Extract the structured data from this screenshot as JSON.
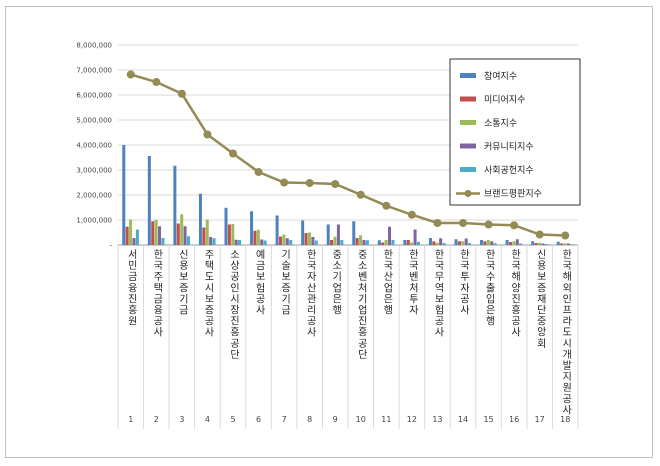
{
  "chart_data": {
    "type": "bar",
    "ylim": [
      0,
      8000000
    ],
    "yticks": [
      "-",
      "1,000,000",
      "2,000,000",
      "3,000,000",
      "4,000,000",
      "5,000,000",
      "6,000,000",
      "7,000,000",
      "8,000,000"
    ],
    "grid": true,
    "legend_position": "top-right",
    "index_labels": [
      "1",
      "2",
      "3",
      "4",
      "5",
      "6",
      "7",
      "8",
      "9",
      "10",
      "11",
      "12",
      "13",
      "14",
      "15",
      "16",
      "17",
      "18"
    ],
    "categories": [
      "서민금융진흥원",
      "한국주택금융공사",
      "신용보증기금",
      "주택도시보증공사",
      "소상공인시장진흥공단",
      "예금보험공사",
      "기술보증기금",
      "한국자산관리공사",
      "중소기업은행",
      "중소벤처기업진흥공단",
      "한국산업은행",
      "한국벤처투자",
      "한국무역보험공사",
      "한국투자공사",
      "한국수출입은행",
      "한국해양진흥공사",
      "신용보증재단중앙회",
      "한국해외인프라도시개발지원공사"
    ],
    "series": [
      {
        "name": "참여지수",
        "kind": "bar",
        "color": "#4f81bd",
        "values": [
          4000000,
          3560000,
          3170000,
          2050000,
          1490000,
          1350000,
          1180000,
          980000,
          820000,
          950000,
          190000,
          200000,
          280000,
          230000,
          200000,
          200000,
          150000,
          130000
        ]
      },
      {
        "name": "미디어지수",
        "kind": "bar",
        "color": "#c0504d",
        "values": [
          730000,
          950000,
          860000,
          700000,
          820000,
          570000,
          340000,
          480000,
          200000,
          280000,
          100000,
          200000,
          150000,
          150000,
          150000,
          120000,
          80000,
          60000
        ]
      },
      {
        "name": "소통지수",
        "kind": "bar",
        "color": "#9bbb59",
        "values": [
          1020000,
          1010000,
          1230000,
          1020000,
          840000,
          610000,
          420000,
          500000,
          330000,
          390000,
          200000,
          100000,
          90000,
          150000,
          200000,
          150000,
          90000,
          70000
        ]
      },
      {
        "name": "커뮤니티지수",
        "kind": "bar",
        "color": "#8064a2",
        "values": [
          280000,
          750000,
          750000,
          320000,
          210000,
          220000,
          270000,
          320000,
          820000,
          200000,
          730000,
          620000,
          270000,
          260000,
          150000,
          230000,
          60000,
          60000
        ]
      },
      {
        "name": "사회공헌지수",
        "kind": "bar",
        "color": "#4bacc6",
        "values": [
          620000,
          280000,
          350000,
          270000,
          200000,
          180000,
          200000,
          180000,
          200000,
          190000,
          200000,
          130000,
          80000,
          80000,
          70000,
          60000,
          40000,
          30000
        ]
      },
      {
        "name": "브랜드평판지수",
        "kind": "line",
        "color": "#948a54",
        "values": [
          6820000,
          6520000,
          6050000,
          4420000,
          3660000,
          2920000,
          2500000,
          2480000,
          2440000,
          2010000,
          1570000,
          1210000,
          880000,
          880000,
          820000,
          790000,
          420000,
          380000
        ]
      }
    ]
  }
}
